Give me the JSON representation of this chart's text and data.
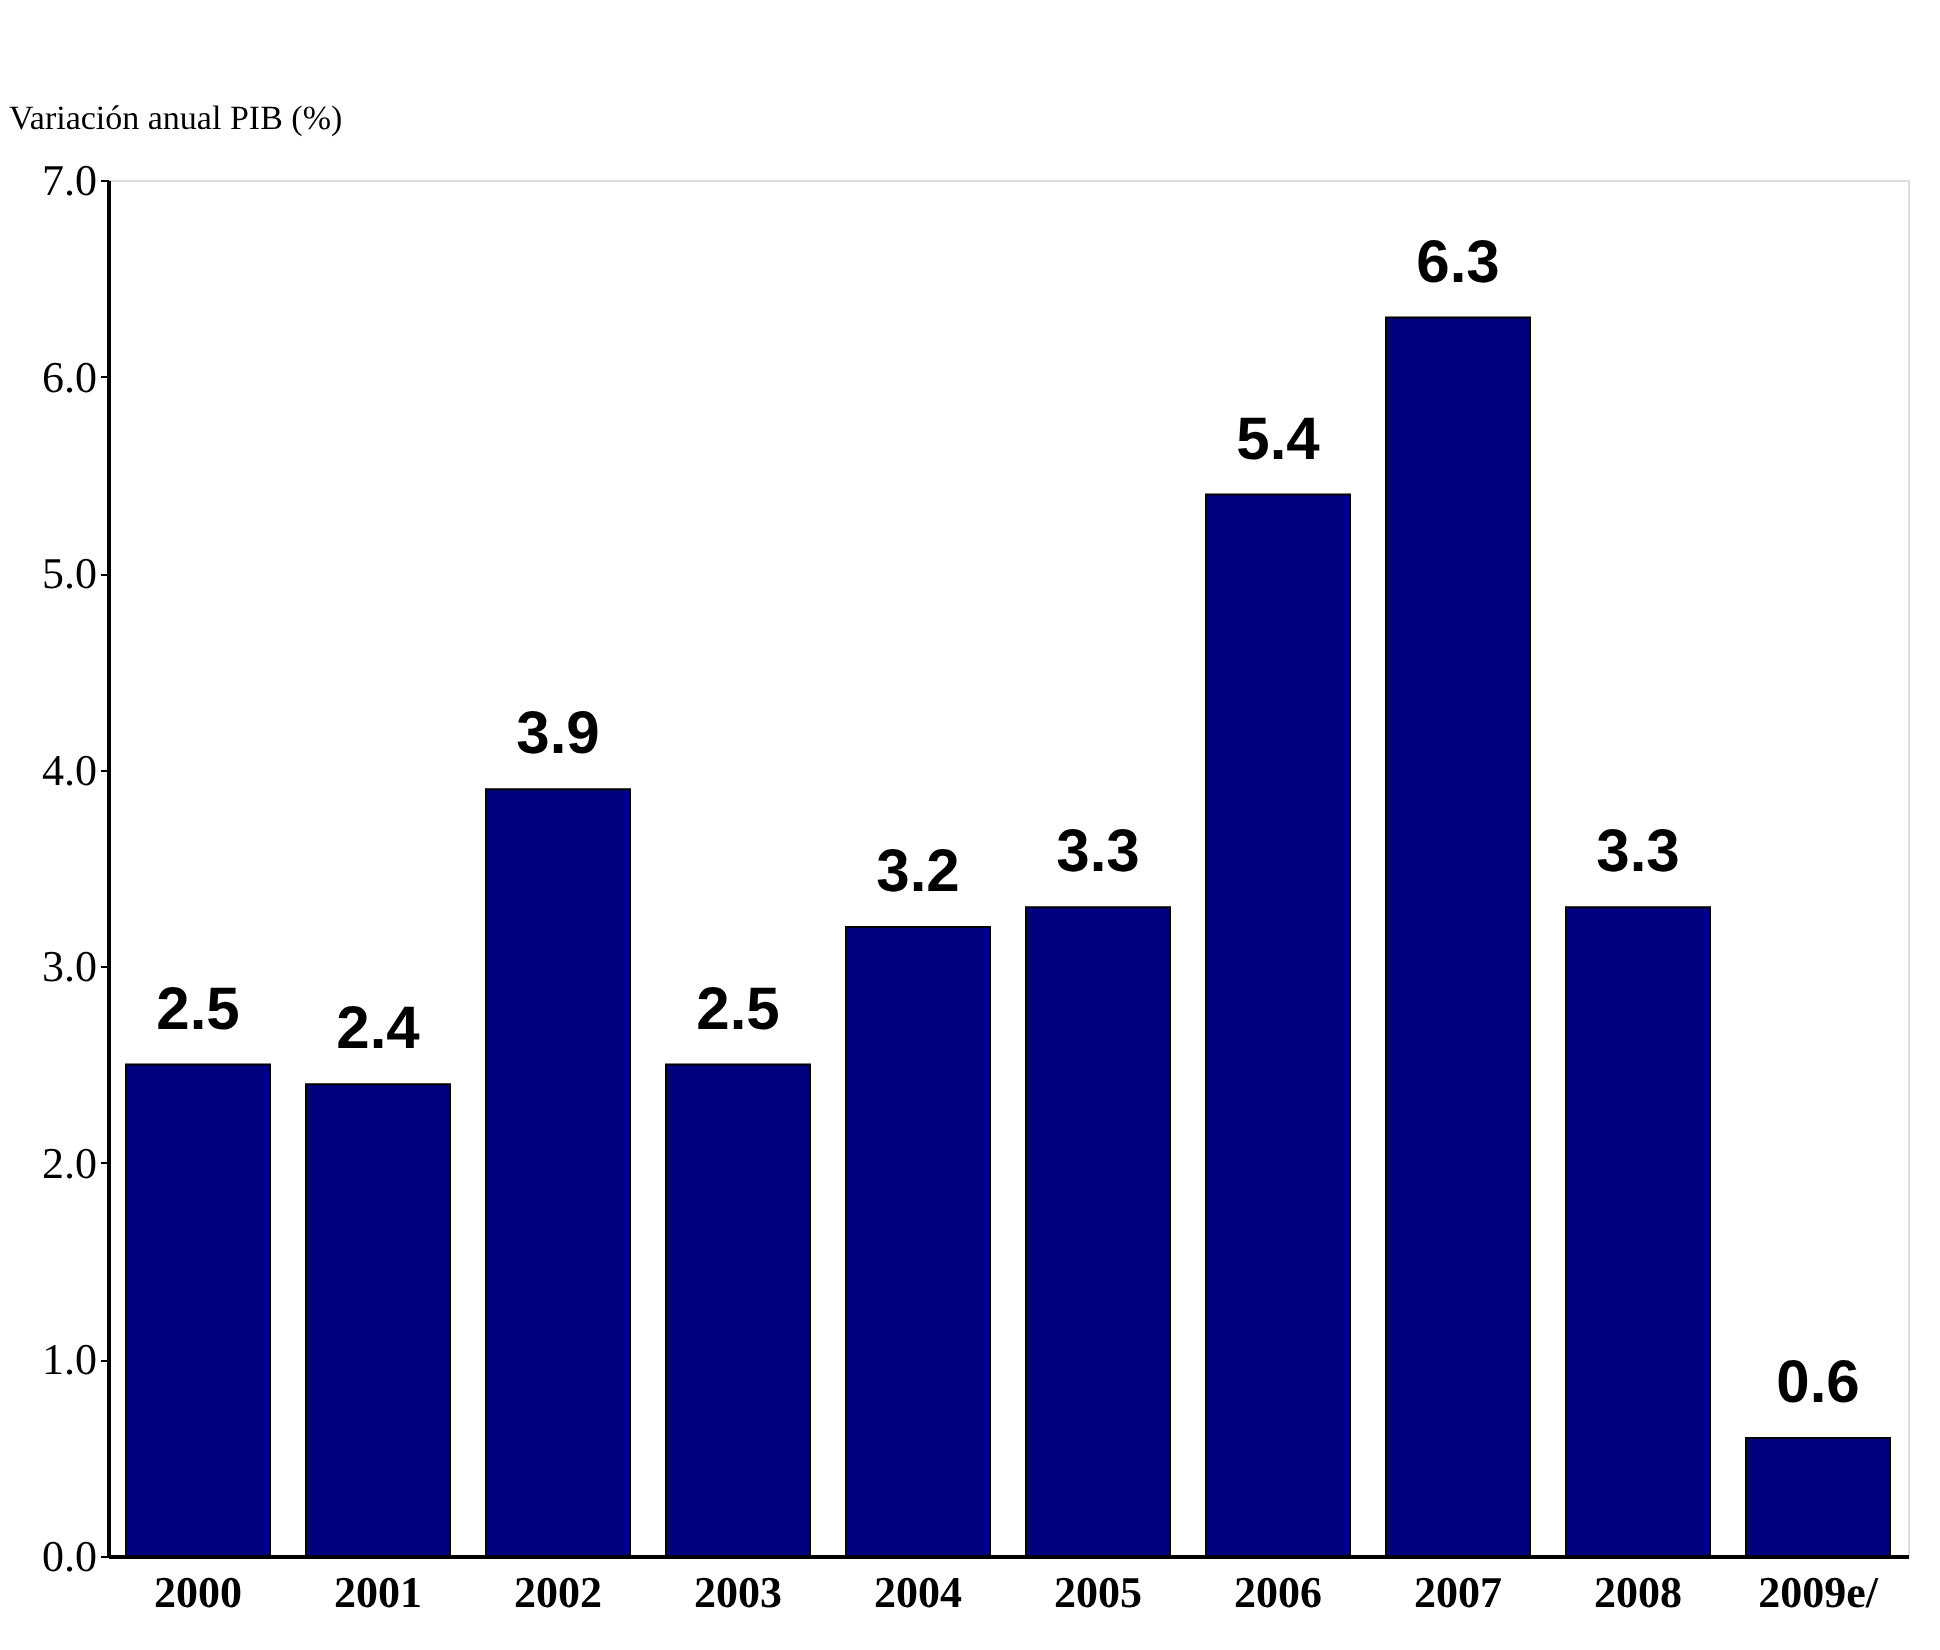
{
  "chart_data": {
    "type": "bar",
    "ylabel": "Variación anual PIB (%)",
    "categories": [
      "2000",
      "2001",
      "2002",
      "2003",
      "2004",
      "2005",
      "2006",
      "2007",
      "2008",
      "2009e/"
    ],
    "values": [
      2.5,
      2.4,
      3.9,
      2.5,
      3.2,
      3.3,
      5.4,
      6.3,
      3.3,
      0.6
    ],
    "color": "#000080",
    "ylim": [
      0,
      7
    ],
    "yticks": [
      {
        "value": 0,
        "label": "0.0"
      },
      {
        "value": 1,
        "label": "1.0"
      },
      {
        "value": 2,
        "label": "2.0"
      },
      {
        "value": 3,
        "label": "3.0"
      },
      {
        "value": 4,
        "label": "4.0"
      },
      {
        "value": 5,
        "label": "5.0"
      },
      {
        "value": 6,
        "label": "6.0"
      },
      {
        "value": 7,
        "label": "7.0"
      }
    ],
    "data_labels": true,
    "grid": false
  }
}
